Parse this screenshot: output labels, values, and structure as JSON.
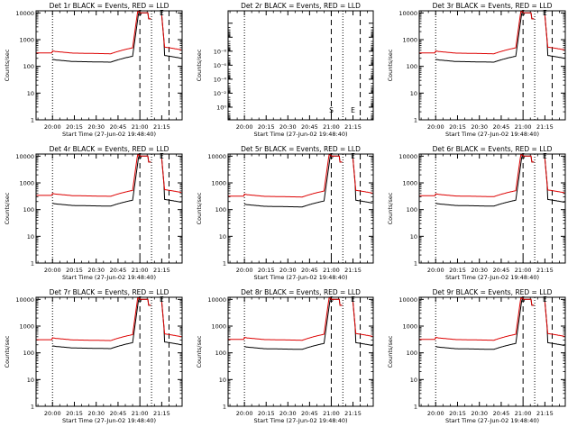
{
  "chart_data": [
    {
      "type": "line",
      "detector": "1r",
      "title": "Det 1r BLACK = Events, RED = LLD",
      "xlabel": "Start Time (27-Jun-02 19:48:40)",
      "ylabel": "Counts/sec",
      "yscale": "log",
      "ylim": [
        1,
        12000
      ],
      "ytick_labels": [
        "1",
        "10",
        "100",
        "1000",
        "10000"
      ],
      "xticks": [
        0,
        15,
        30,
        45,
        60,
        75
      ],
      "xtick_labels": [
        "20:00",
        "20:15",
        "20:30",
        "20:45",
        "21:00",
        "21:15"
      ],
      "xlim": [
        -11.3,
        89
      ],
      "dotted_lines": [
        0,
        68
      ],
      "dashed_lines": [
        60,
        80
      ],
      "markers": [
        {
          "text": "S",
          "x": 60
        },
        {
          "text": "E",
          "x": 75
        }
      ],
      "series": [
        {
          "name": "Events",
          "color": "#000000",
          "flat_level": 160,
          "gap": true
        },
        {
          "name": "LLD",
          "color": "#dd0000",
          "flat_level": 330,
          "gap": false
        }
      ]
    },
    {
      "type": "line",
      "detector": "2r",
      "title": "Det 2r BLACK = Events, RED = LLD",
      "xlabel": "Start Time (27-Jun-02 19:48:40)",
      "ylabel": "Counts/sec",
      "yscale": "log",
      "ylim": [
        0.8,
        1.3e-08
      ],
      "ytick_labels": [
        "10⁰",
        "10⁻²",
        "10⁻⁴",
        "10⁻⁶",
        "10⁻⁸"
      ],
      "xticks": [
        0,
        15,
        30,
        45,
        60,
        75
      ],
      "xtick_labels": [
        "20:00",
        "20:15",
        "20:30",
        "20:45",
        "21:00",
        "21:15"
      ],
      "xlim": [
        -11.3,
        89
      ],
      "dotted_lines": [
        0,
        68
      ],
      "dashed_lines": [
        60,
        80
      ],
      "markers": [
        {
          "text": "S",
          "x": 60
        },
        {
          "text": "E",
          "x": 75
        }
      ],
      "series": []
    },
    {
      "type": "line",
      "detector": "3r",
      "title": "Det 3r BLACK = Events, RED = LLD",
      "xlabel": "Start Time (27-Jun-02 19:48:40)",
      "ylabel": "Counts/sec",
      "yscale": "log",
      "ylim": [
        1,
        12000
      ],
      "ytick_labels": [
        "1",
        "10",
        "100",
        "1000",
        "10000"
      ],
      "xticks": [
        0,
        15,
        30,
        45,
        60,
        75
      ],
      "xtick_labels": [
        "20:00",
        "20:15",
        "20:30",
        "20:45",
        "21:00",
        "21:15"
      ],
      "xlim": [
        -11.3,
        89
      ],
      "dotted_lines": [
        0,
        68
      ],
      "dashed_lines": [
        60,
        80
      ],
      "markers": [
        {
          "text": "S",
          "x": 60
        },
        {
          "text": "E",
          "x": 75
        }
      ],
      "series": [
        {
          "name": "Events",
          "color": "#000000",
          "flat_level": 160,
          "gap": true
        },
        {
          "name": "LLD",
          "color": "#dd0000",
          "flat_level": 330,
          "gap": false
        }
      ]
    },
    {
      "type": "line",
      "detector": "4r",
      "title": "Det 4r BLACK = Events, RED = LLD",
      "xlabel": "Start Time (27-Jun-02 19:48:40)",
      "ylabel": "Counts/sec",
      "yscale": "log",
      "ylim": [
        1,
        12000
      ],
      "ytick_labels": [
        "1",
        "10",
        "100",
        "1000",
        "10000"
      ],
      "xticks": [
        0,
        15,
        30,
        45,
        60,
        75
      ],
      "xtick_labels": [
        "20:00",
        "20:15",
        "20:30",
        "20:45",
        "21:00",
        "21:15"
      ],
      "xlim": [
        -11.3,
        89
      ],
      "dotted_lines": [
        0,
        68
      ],
      "dashed_lines": [
        60,
        80
      ],
      "markers": [
        {
          "text": "S",
          "x": 60
        },
        {
          "text": "E",
          "x": 75
        }
      ],
      "series": [
        {
          "name": "Events",
          "color": "#000000",
          "flat_level": 150,
          "gap": true
        },
        {
          "name": "LLD",
          "color": "#dd0000",
          "flat_level": 350,
          "gap": false
        }
      ]
    },
    {
      "type": "line",
      "detector": "5r",
      "title": "Det 5r BLACK = Events, RED = LLD",
      "xlabel": "Start Time (27-Jun-02 19:48:40)",
      "ylabel": "Counts/sec",
      "yscale": "log",
      "ylim": [
        1,
        12000
      ],
      "ytick_labels": [
        "1",
        "10",
        "100",
        "1000",
        "10000"
      ],
      "xticks": [
        0,
        15,
        30,
        45,
        60,
        75
      ],
      "xtick_labels": [
        "20:00",
        "20:15",
        "20:30",
        "20:45",
        "21:00",
        "21:15"
      ],
      "xlim": [
        -11.3,
        89
      ],
      "dotted_lines": [
        0,
        68
      ],
      "dashed_lines": [
        60,
        80
      ],
      "markers": [
        {
          "text": "S",
          "x": 60
        },
        {
          "text": "E",
          "x": 75
        }
      ],
      "series": [
        {
          "name": "Events",
          "color": "#000000",
          "flat_level": 140,
          "gap": true
        },
        {
          "name": "LLD",
          "color": "#dd0000",
          "flat_level": 330,
          "gap": false
        }
      ]
    },
    {
      "type": "line",
      "detector": "6r",
      "title": "Det 6r BLACK = Events, RED = LLD",
      "xlabel": "Start Time (27-Jun-02 19:48:40)",
      "ylabel": "Counts/sec",
      "yscale": "log",
      "ylim": [
        1,
        12000
      ],
      "ytick_labels": [
        "1",
        "10",
        "100",
        "1000",
        "10000"
      ],
      "xticks": [
        0,
        15,
        30,
        45,
        60,
        75
      ],
      "xtick_labels": [
        "20:00",
        "20:15",
        "20:30",
        "20:45",
        "21:00",
        "21:15"
      ],
      "xlim": [
        -11.3,
        89
      ],
      "dotted_lines": [
        0,
        68
      ],
      "dashed_lines": [
        60,
        80
      ],
      "markers": [
        {
          "text": "S",
          "x": 60
        },
        {
          "text": "E",
          "x": 75
        }
      ],
      "series": [
        {
          "name": "Events",
          "color": "#000000",
          "flat_level": 150,
          "gap": true
        },
        {
          "name": "LLD",
          "color": "#dd0000",
          "flat_level": 340,
          "gap": false
        }
      ]
    },
    {
      "type": "line",
      "detector": "7r",
      "title": "Det 7r BLACK = Events, RED = LLD",
      "xlabel": "Start Time (27-Jun-02 19:48:40)",
      "ylabel": "Counts/sec",
      "yscale": "log",
      "ylim": [
        1,
        12000
      ],
      "ytick_labels": [
        "1",
        "10",
        "100",
        "1000",
        "10000"
      ],
      "xticks": [
        0,
        15,
        30,
        45,
        60,
        75
      ],
      "xtick_labels": [
        "20:00",
        "20:15",
        "20:30",
        "20:45",
        "21:00",
        "21:15"
      ],
      "xlim": [
        -11.3,
        89
      ],
      "dotted_lines": [
        0,
        68
      ],
      "dashed_lines": [
        60,
        80
      ],
      "markers": [
        {
          "text": "S",
          "x": 60
        },
        {
          "text": "E",
          "x": 75
        }
      ],
      "series": [
        {
          "name": "Events",
          "color": "#000000",
          "flat_level": 160,
          "gap": true
        },
        {
          "name": "LLD",
          "color": "#dd0000",
          "flat_level": 320,
          "gap": false
        }
      ]
    },
    {
      "type": "line",
      "detector": "8r",
      "title": "Det 8r BLACK = Events, RED = LLD",
      "xlabel": "Start Time (27-Jun-02 19:48:40)",
      "ylabel": "Counts/sec",
      "yscale": "log",
      "ylim": [
        1,
        12000
      ],
      "ytick_labels": [
        "1",
        "10",
        "100",
        "1000",
        "10000"
      ],
      "xticks": [
        0,
        15,
        30,
        45,
        60,
        75
      ],
      "xtick_labels": [
        "20:00",
        "20:15",
        "20:30",
        "20:45",
        "21:00",
        "21:15"
      ],
      "xlim": [
        -11.3,
        89
      ],
      "dotted_lines": [
        0,
        68
      ],
      "dashed_lines": [
        60,
        80
      ],
      "markers": [
        {
          "text": "S",
          "x": 60
        },
        {
          "text": "E",
          "x": 75
        }
      ],
      "series": [
        {
          "name": "Events",
          "color": "#000000",
          "flat_level": 150,
          "gap": true
        },
        {
          "name": "LLD",
          "color": "#dd0000",
          "flat_level": 330,
          "gap": false
        }
      ]
    },
    {
      "type": "line",
      "detector": "9r",
      "title": "Det 9r BLACK = Events, RED = LLD",
      "xlabel": "Start Time (27-Jun-02 19:48:40)",
      "ylabel": "Counts/sec",
      "yscale": "log",
      "ylim": [
        1,
        12000
      ],
      "ytick_labels": [
        "1",
        "10",
        "100",
        "1000",
        "10000"
      ],
      "xticks": [
        0,
        15,
        30,
        45,
        60,
        75
      ],
      "xtick_labels": [
        "20:00",
        "20:15",
        "20:30",
        "20:45",
        "21:00",
        "21:15"
      ],
      "xlim": [
        -11.3,
        89
      ],
      "dotted_lines": [
        0,
        68
      ],
      "dashed_lines": [
        60,
        80
      ],
      "markers": [
        {
          "text": "S",
          "x": 60
        },
        {
          "text": "E",
          "x": 75
        }
      ],
      "series": [
        {
          "name": "Events",
          "color": "#000000",
          "flat_level": 150,
          "gap": true
        },
        {
          "name": "LLD",
          "color": "#dd0000",
          "flat_level": 330,
          "gap": false
        }
      ]
    }
  ]
}
